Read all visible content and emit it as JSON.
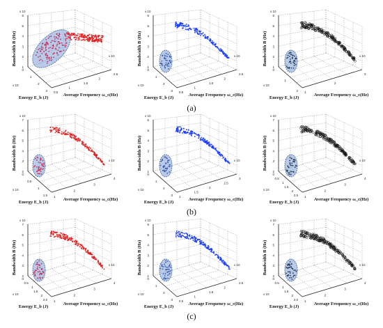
{
  "figure": {
    "captions": [
      "(a)",
      "(b)",
      "(c)"
    ],
    "ylabel": "Bandwidth B (Hz)",
    "xlabel": "Average Frequency ω_c(Hz)",
    "zlabel": "Energy E_b (J)",
    "exponent_note": "x 10",
    "colors": {
      "red": "#e02020",
      "blue": "#1a3cff",
      "black": "#111111",
      "ellipse_fill": "#8aa8d8",
      "ellipse_stroke": "#3a5f9e",
      "cluster_red": "#c0305a",
      "cluster_blue": "#3b5fae",
      "cluster_black": "#2a3a55"
    }
  },
  "chart_data": [
    {
      "type": "scatter",
      "row": "(a)",
      "col": 1,
      "series": [
        {
          "color": "red"
        }
      ],
      "yticks": [
        "6",
        "5",
        "4",
        "3",
        "2",
        "1"
      ],
      "xticks": [
        "0.5",
        "1",
        "1.5",
        "2",
        "2.5"
      ],
      "zticks": [
        "0",
        "1",
        "2",
        "3"
      ],
      "cluster": "main"
    },
    {
      "type": "scatter",
      "row": "(a)",
      "col": 2,
      "series": [
        {
          "color": "blue"
        }
      ],
      "yticks": [
        "6",
        "5",
        "4",
        "3",
        "2",
        "1"
      ],
      "xticks": [
        "0.5",
        "1",
        "1.5",
        "2",
        "2.5"
      ],
      "zticks": [
        "0",
        "1",
        "2",
        "3"
      ],
      "cluster": "small"
    },
    {
      "type": "scatter",
      "row": "(a)",
      "col": 3,
      "series": [
        {
          "color": "black",
          "marker": "circle"
        }
      ],
      "yticks": [
        "6",
        "5",
        "4",
        "3",
        "2",
        "1"
      ],
      "xticks": [
        "1",
        "2",
        "3"
      ],
      "zticks": [
        "0",
        "1",
        "2"
      ],
      "cluster": "small"
    },
    {
      "type": "scatter",
      "row": "(b)",
      "col": 1,
      "series": [
        {
          "color": "red"
        }
      ],
      "yticks": [
        "7",
        "6",
        "5",
        "4",
        "3",
        "2"
      ],
      "xticks": [
        "1",
        "2",
        "3",
        "4"
      ],
      "zticks": [
        "0",
        "0.5",
        "1",
        "1.5"
      ],
      "cluster": "small"
    },
    {
      "type": "scatter",
      "row": "(b)",
      "col": 2,
      "series": [
        {
          "color": "blue"
        }
      ],
      "yticks": [
        "6",
        "5",
        "4",
        "3",
        "2",
        "1"
      ],
      "xticks": [
        "1",
        "1.5",
        "2",
        "2.5",
        "3"
      ],
      "zticks": [
        "0",
        "1",
        "2",
        "3"
      ],
      "cluster": "small"
    },
    {
      "type": "scatter",
      "row": "(b)",
      "col": 3,
      "series": [
        {
          "color": "black",
          "marker": "circle"
        }
      ],
      "yticks": [
        "7",
        "6",
        "5",
        "4",
        "3",
        "2"
      ],
      "xticks": [
        "1",
        "2",
        "3",
        "4"
      ],
      "zticks": [
        "0",
        "0.5",
        "1",
        "1.5",
        "2",
        "2.5"
      ],
      "cluster": "small"
    },
    {
      "type": "scatter",
      "row": "(c)",
      "col": 1,
      "series": [
        {
          "color": "red"
        }
      ],
      "yticks": [
        "7",
        "6",
        "5",
        "4",
        "3",
        "2"
      ],
      "xticks": [
        "1",
        "2",
        "3",
        "4"
      ],
      "zticks": [
        "0",
        "0.5",
        "1",
        "1.5",
        "2",
        "2.5"
      ],
      "cluster": "small"
    },
    {
      "type": "scatter",
      "row": "(c)",
      "col": 2,
      "series": [
        {
          "color": "blue"
        }
      ],
      "yticks": [
        "6",
        "5",
        "4",
        "3",
        "2",
        "1"
      ],
      "xticks": [
        "0.5",
        "1",
        "1.5",
        "2",
        "2.5"
      ],
      "zticks": [
        "0",
        "1",
        "2",
        "3"
      ],
      "cluster": "small"
    },
    {
      "type": "scatter",
      "row": "(c)",
      "col": 3,
      "series": [
        {
          "color": "black",
          "marker": "circle"
        }
      ],
      "yticks": [
        "7",
        "6",
        "5",
        "4",
        "3",
        "2"
      ],
      "xticks": [
        "1",
        "2",
        "3",
        "4"
      ],
      "zticks": [
        "0",
        "0.5",
        "1",
        "1.5",
        "2",
        "2.5"
      ],
      "cluster": "small"
    }
  ]
}
